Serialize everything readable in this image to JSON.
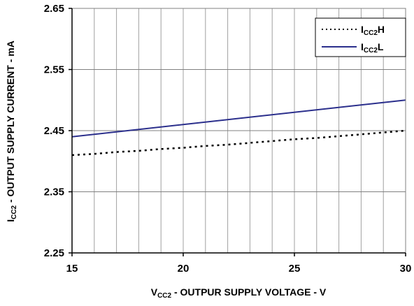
{
  "chart_data": {
    "type": "line",
    "xlabel": {
      "main": "V",
      "sub": "CC2",
      "rest": " - OUTPUR SUPPLY VOLTAGE - V"
    },
    "ylabel": {
      "main": "I",
      "sub": "CC2",
      "rest": " - OUTPUT SUPPLY CURRENT - mA"
    },
    "xlim": [
      15,
      30
    ],
    "ylim": [
      2.25,
      2.65
    ],
    "xticks": [
      15,
      20,
      25,
      30
    ],
    "xtick_labels": [
      "15",
      "20",
      "25",
      "30"
    ],
    "yticks": [
      2.25,
      2.35,
      2.45,
      2.55,
      2.65
    ],
    "ytick_labels": [
      "2.25",
      "2.35",
      "2.45",
      "2.55",
      "2.65"
    ],
    "x_minor_step": 1,
    "grid": true,
    "legend_position": "top-right",
    "series": [
      {
        "name": {
          "main": "I",
          "sub": "CC2",
          "rest": "H"
        },
        "color": "#000000",
        "style": "dotted",
        "x": [
          15,
          16,
          17,
          18,
          19,
          20,
          21,
          22,
          23,
          24,
          25,
          26,
          27,
          28,
          29,
          30
        ],
        "y": [
          2.41,
          2.412,
          2.415,
          2.417,
          2.42,
          2.422,
          2.425,
          2.427,
          2.43,
          2.433,
          2.436,
          2.438,
          2.441,
          2.444,
          2.447,
          2.45
        ]
      },
      {
        "name": {
          "main": "I",
          "sub": "CC2",
          "rest": "L"
        },
        "color": "#2b2f8c",
        "style": "solid",
        "x": [
          15,
          30
        ],
        "y": [
          2.44,
          2.5
        ]
      }
    ]
  }
}
